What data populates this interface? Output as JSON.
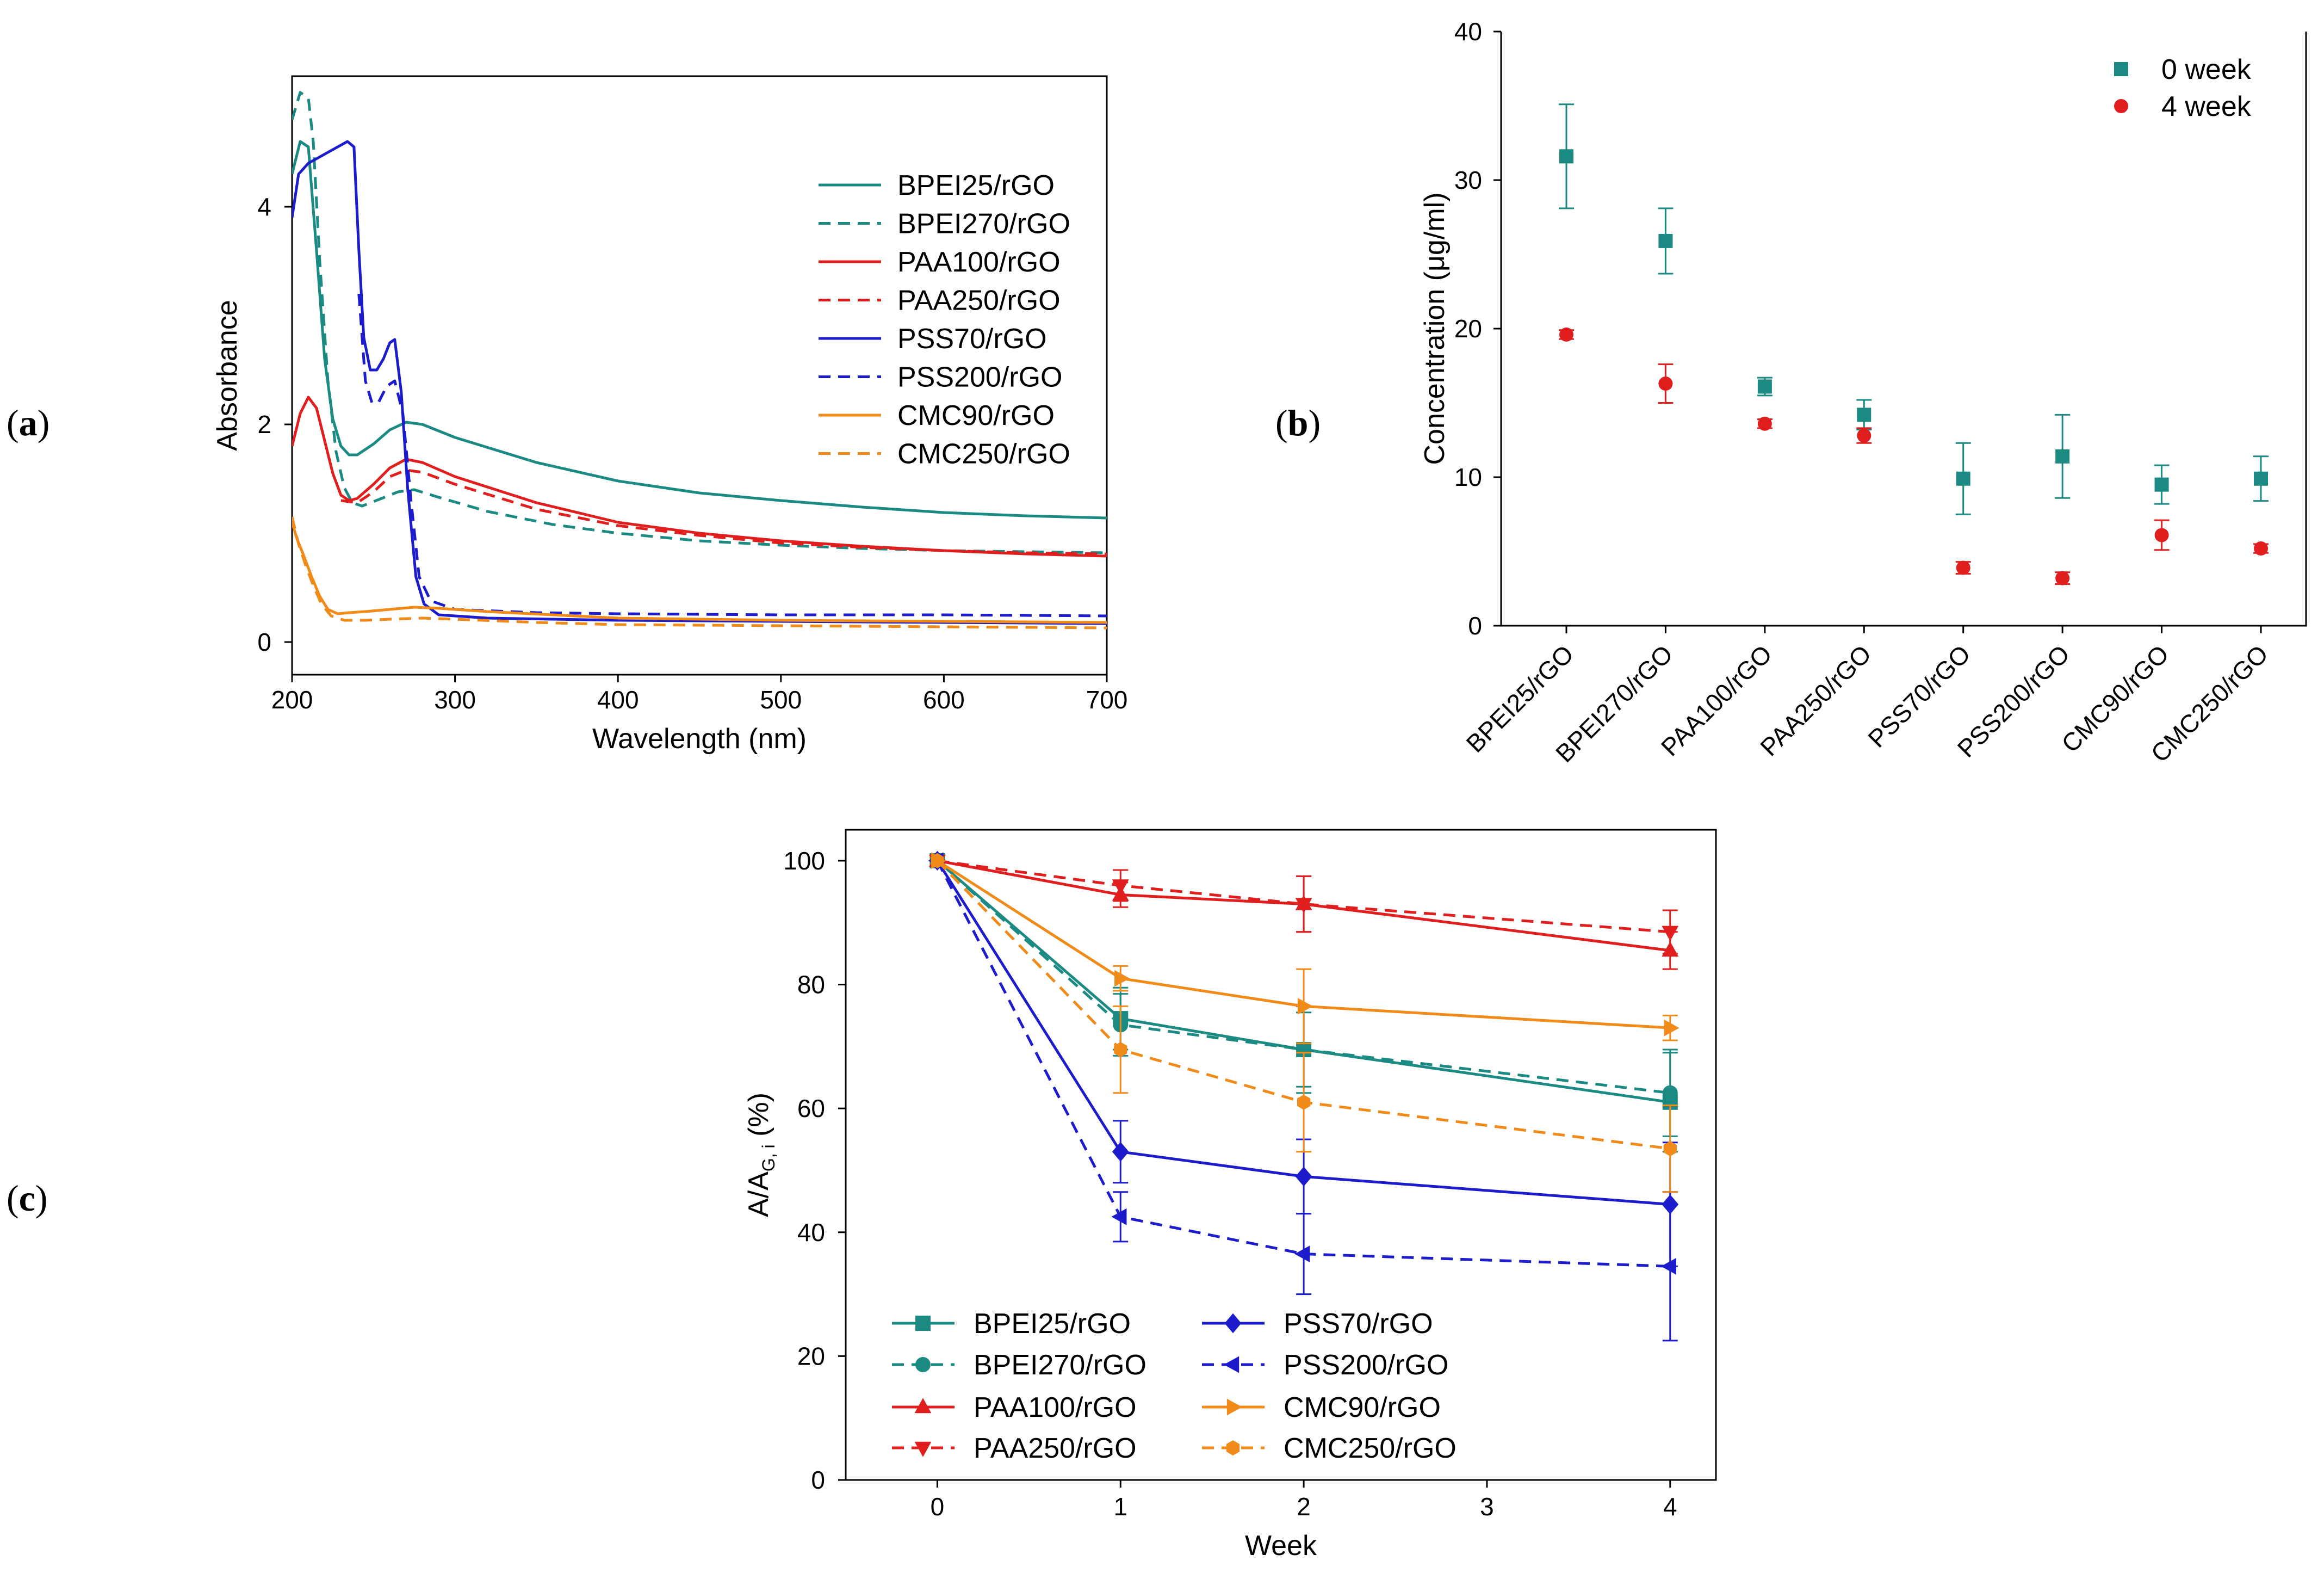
{
  "panel_labels": [
    {
      "open": "(",
      "letter": "a",
      "close": ")"
    },
    {
      "open": "(",
      "letter": "b",
      "close": ")"
    },
    {
      "open": "(",
      "letter": "c",
      "close": ")"
    }
  ],
  "colors": {
    "teal": "#1a8a82",
    "red": "#e01e1e",
    "blue": "#1c1ccc",
    "orange": "#f08a18"
  },
  "chart_data": [
    {
      "panel": "a",
      "type": "line",
      "title": "",
      "xlabel": "Wavelength (nm)",
      "ylabel": "Absorbance",
      "xlim": [
        200,
        700
      ],
      "ylim": [
        -0.3,
        5.2
      ],
      "xticks": [
        200,
        300,
        400,
        500,
        600,
        700
      ],
      "yticks": [
        0,
        2,
        4
      ],
      "legend_position": "right",
      "series": [
        {
          "name": "BPEI25/rGO",
          "color": "teal",
          "dash": false,
          "points": [
            [
              200,
              4.3
            ],
            [
              205,
              4.6
            ],
            [
              210,
              4.55
            ],
            [
              215,
              3.6
            ],
            [
              220,
              2.6
            ],
            [
              225,
              2.05
            ],
            [
              230,
              1.8
            ],
            [
              235,
              1.72
            ],
            [
              240,
              1.72
            ],
            [
              250,
              1.82
            ],
            [
              260,
              1.95
            ],
            [
              270,
              2.02
            ],
            [
              280,
              2.0
            ],
            [
              300,
              1.88
            ],
            [
              350,
              1.65
            ],
            [
              400,
              1.48
            ],
            [
              450,
              1.37
            ],
            [
              500,
              1.3
            ],
            [
              550,
              1.24
            ],
            [
              600,
              1.19
            ],
            [
              650,
              1.16
            ],
            [
              700,
              1.14
            ]
          ]
        },
        {
          "name": "BPEI270/rGO",
          "color": "teal",
          "dash": true,
          "points": [
            [
              200,
              4.8
            ],
            [
              205,
              5.05
            ],
            [
              210,
              5.0
            ],
            [
              213,
              4.6
            ],
            [
              217,
              3.5
            ],
            [
              222,
              2.4
            ],
            [
              227,
              1.75
            ],
            [
              232,
              1.42
            ],
            [
              237,
              1.28
            ],
            [
              243,
              1.25
            ],
            [
              255,
              1.32
            ],
            [
              265,
              1.38
            ],
            [
              275,
              1.4
            ],
            [
              290,
              1.33
            ],
            [
              320,
              1.2
            ],
            [
              360,
              1.08
            ],
            [
              400,
              1.0
            ],
            [
              450,
              0.93
            ],
            [
              500,
              0.89
            ],
            [
              550,
              0.86
            ],
            [
              600,
              0.84
            ],
            [
              650,
              0.83
            ],
            [
              700,
              0.82
            ]
          ]
        },
        {
          "name": "PAA100/rGO",
          "color": "red",
          "dash": false,
          "points": [
            [
              200,
              1.8
            ],
            [
              205,
              2.1
            ],
            [
              210,
              2.25
            ],
            [
              215,
              2.15
            ],
            [
              220,
              1.85
            ],
            [
              225,
              1.55
            ],
            [
              230,
              1.35
            ],
            [
              235,
              1.3
            ],
            [
              240,
              1.32
            ],
            [
              250,
              1.45
            ],
            [
              260,
              1.6
            ],
            [
              270,
              1.68
            ],
            [
              280,
              1.65
            ],
            [
              300,
              1.52
            ],
            [
              350,
              1.28
            ],
            [
              400,
              1.1
            ],
            [
              450,
              1.0
            ],
            [
              500,
              0.93
            ],
            [
              550,
              0.88
            ],
            [
              600,
              0.84
            ],
            [
              650,
              0.81
            ],
            [
              700,
              0.79
            ]
          ]
        },
        {
          "name": "PAA250/rGO",
          "color": "red",
          "dash": true,
          "points": [
            [
              230,
              1.3
            ],
            [
              240,
              1.28
            ],
            [
              250,
              1.38
            ],
            [
              260,
              1.52
            ],
            [
              270,
              1.58
            ],
            [
              280,
              1.56
            ],
            [
              300,
              1.45
            ],
            [
              350,
              1.22
            ],
            [
              400,
              1.07
            ],
            [
              450,
              0.98
            ],
            [
              500,
              0.91
            ],
            [
              550,
              0.87
            ],
            [
              600,
              0.84
            ],
            [
              650,
              0.82
            ],
            [
              700,
              0.81
            ]
          ]
        },
        {
          "name": "PSS70/rGO",
          "color": "blue",
          "dash": false,
          "points": [
            [
              200,
              3.9
            ],
            [
              204,
              4.3
            ],
            [
              210,
              4.4
            ],
            [
              216,
              4.45
            ],
            [
              222,
              4.5
            ],
            [
              228,
              4.55
            ],
            [
              234,
              4.6
            ],
            [
              238,
              4.55
            ],
            [
              241,
              3.6
            ],
            [
              244,
              2.8
            ],
            [
              248,
              2.5
            ],
            [
              252,
              2.5
            ],
            [
              256,
              2.6
            ],
            [
              260,
              2.75
            ],
            [
              263,
              2.78
            ],
            [
              267,
              2.3
            ],
            [
              271,
              1.4
            ],
            [
              276,
              0.6
            ],
            [
              281,
              0.35
            ],
            [
              290,
              0.25
            ],
            [
              320,
              0.22
            ],
            [
              400,
              0.2
            ],
            [
              500,
              0.19
            ],
            [
              600,
              0.18
            ],
            [
              700,
              0.17
            ]
          ]
        },
        {
          "name": "PSS200/rGO",
          "color": "blue",
          "dash": true,
          "points": [
            [
              241,
              3.2
            ],
            [
              245,
              2.4
            ],
            [
              249,
              2.2
            ],
            [
              253,
              2.2
            ],
            [
              258,
              2.35
            ],
            [
              263,
              2.4
            ],
            [
              268,
              2.1
            ],
            [
              273,
              1.3
            ],
            [
              278,
              0.6
            ],
            [
              285,
              0.38
            ],
            [
              300,
              0.3
            ],
            [
              350,
              0.27
            ],
            [
              400,
              0.26
            ],
            [
              500,
              0.25
            ],
            [
              600,
              0.25
            ],
            [
              700,
              0.24
            ]
          ]
        },
        {
          "name": "CMC90/rGO",
          "color": "orange",
          "dash": false,
          "points": [
            [
              200,
              1.1
            ],
            [
              203,
              0.95
            ],
            [
              207,
              0.8
            ],
            [
              212,
              0.6
            ],
            [
              217,
              0.42
            ],
            [
              222,
              0.3
            ],
            [
              228,
              0.26
            ],
            [
              235,
              0.27
            ],
            [
              245,
              0.28
            ],
            [
              260,
              0.3
            ],
            [
              275,
              0.32
            ],
            [
              290,
              0.31
            ],
            [
              320,
              0.28
            ],
            [
              360,
              0.25
            ],
            [
              400,
              0.22
            ],
            [
              500,
              0.2
            ],
            [
              600,
              0.19
            ],
            [
              700,
              0.18
            ]
          ]
        },
        {
          "name": "CMC250/rGO",
          "color": "orange",
          "dash": true,
          "points": [
            [
              200,
              1.15
            ],
            [
              204,
              0.9
            ],
            [
              208,
              0.72
            ],
            [
              213,
              0.52
            ],
            [
              218,
              0.35
            ],
            [
              224,
              0.24
            ],
            [
              232,
              0.2
            ],
            [
              245,
              0.2
            ],
            [
              260,
              0.21
            ],
            [
              280,
              0.22
            ],
            [
              300,
              0.21
            ],
            [
              350,
              0.18
            ],
            [
              400,
              0.16
            ],
            [
              500,
              0.15
            ],
            [
              600,
              0.14
            ],
            [
              700,
              0.13
            ]
          ]
        }
      ]
    },
    {
      "panel": "b",
      "type": "scatter",
      "title": "",
      "xlabel": "",
      "ylabel": "Concentration (μg/ml)",
      "ylim": [
        0,
        40
      ],
      "yticks": [
        0,
        10,
        20,
        30,
        40
      ],
      "categories": [
        "BPEI25/rGO",
        "BPEI270/rGO",
        "PAA100/rGO",
        "PAA250/rGO",
        "PSS70/rGO",
        "PSS200/rGO",
        "CMC90/rGO",
        "CMC250/rGO"
      ],
      "legend_position": "top-right",
      "series": [
        {
          "name": "0 week",
          "color": "teal",
          "marker": "square",
          "values": [
            31.6,
            25.9,
            16.1,
            14.2,
            9.9,
            11.4,
            9.5,
            9.9
          ],
          "errors": [
            3.5,
            2.2,
            0.6,
            1.0,
            2.4,
            2.8,
            1.3,
            1.5
          ]
        },
        {
          "name": "4 week",
          "color": "red",
          "marker": "circle",
          "values": [
            19.6,
            16.3,
            13.6,
            12.8,
            3.9,
            3.2,
            6.1,
            5.2
          ],
          "errors": [
            0.3,
            1.3,
            0.3,
            0.5,
            0.4,
            0.4,
            1.0,
            0.3
          ]
        }
      ]
    },
    {
      "panel": "c",
      "type": "line",
      "title": "",
      "xlabel": "Week",
      "ylabel_main": "A/A",
      "ylabel_sub": "G, i",
      "ylabel_unit": "(%)",
      "xlim": [
        -0.5,
        4.25
      ],
      "ylim": [
        0,
        105
      ],
      "xticks": [
        0,
        1,
        2,
        3,
        4
      ],
      "yticks": [
        0,
        20,
        40,
        60,
        80,
        100
      ],
      "x": [
        0,
        1,
        2,
        4
      ],
      "legend_position": "bottom-left",
      "series": [
        {
          "name": "BPEI25/rGO",
          "color": "teal",
          "dash": false,
          "marker": "square",
          "values": [
            100,
            74.5,
            69.5,
            61
          ],
          "errors": [
            0,
            5,
            6,
            8
          ]
        },
        {
          "name": "BPEI270/rGO",
          "color": "teal",
          "dash": true,
          "marker": "circle",
          "values": [
            100,
            73.5,
            69.5,
            62.5
          ],
          "errors": [
            0,
            5,
            7,
            7
          ]
        },
        {
          "name": "PAA100/rGO",
          "color": "red",
          "dash": false,
          "marker": "triangle-up",
          "values": [
            100,
            94.5,
            93,
            85.5
          ],
          "errors": [
            0,
            2,
            4.5,
            3
          ]
        },
        {
          "name": "PAA250/rGO",
          "color": "red",
          "dash": true,
          "marker": "triangle-down",
          "values": [
            100,
            96,
            93,
            88.5
          ],
          "errors": [
            0,
            2.5,
            4.5,
            3.5
          ]
        },
        {
          "name": "PSS70/rGO",
          "color": "blue",
          "dash": false,
          "marker": "diamond",
          "values": [
            100,
            53,
            49,
            44.5
          ],
          "errors": [
            0,
            5,
            6,
            10
          ]
        },
        {
          "name": "PSS200/rGO",
          "color": "blue",
          "dash": true,
          "marker": "triangle-left",
          "values": [
            100,
            42.5,
            36.5,
            34.5
          ],
          "errors": [
            0,
            4,
            6.5,
            12
          ]
        },
        {
          "name": "CMC90/rGO",
          "color": "orange",
          "dash": false,
          "marker": "triangle-right",
          "values": [
            100,
            81,
            76.5,
            73
          ],
          "errors": [
            0,
            2,
            6,
            2
          ]
        },
        {
          "name": "CMC250/rGO",
          "color": "orange",
          "dash": true,
          "marker": "hexagon",
          "values": [
            100,
            69.5,
            61,
            53.5
          ],
          "errors": [
            0,
            7,
            8,
            7
          ]
        }
      ]
    }
  ]
}
